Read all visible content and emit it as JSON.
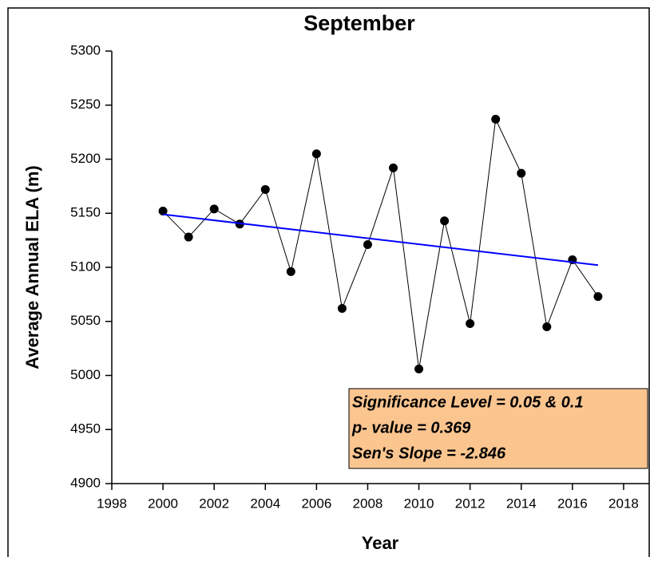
{
  "chart_data": {
    "type": "line",
    "title": "September",
    "x_label": "Year",
    "y_label": "Average Annual ELA (m)",
    "x": [
      2000,
      2001,
      2002,
      2003,
      2004,
      2005,
      2006,
      2007,
      2008,
      2009,
      2010,
      2011,
      2012,
      2013,
      2014,
      2015,
      2016,
      2017
    ],
    "series": [
      {
        "color": "#000000",
        "values": [
          5152,
          5128,
          5154,
          5140,
          5172,
          5096,
          5205,
          5062,
          5121,
          5192,
          5006,
          5143,
          5048,
          5237,
          5187,
          5045,
          5107,
          5073
        ]
      }
    ],
    "trend": {
      "color": "#0000ff",
      "x": [
        2000,
        2017
      ],
      "values": [
        5149,
        5102
      ]
    },
    "xlim": [
      1998,
      2019
    ],
    "ylim": [
      4900,
      5300
    ],
    "xticks": [
      1998,
      2000,
      2002,
      2004,
      2006,
      2008,
      2010,
      2012,
      2014,
      2016,
      2018
    ],
    "yticks": [
      4900,
      4950,
      5000,
      5050,
      5100,
      5150,
      5200,
      5250,
      5300
    ],
    "annotations": [
      "Significance Level = 0.05 & 0.1",
      "p- value = 0.369",
      "Sen's Slope = -2.846"
    ]
  }
}
